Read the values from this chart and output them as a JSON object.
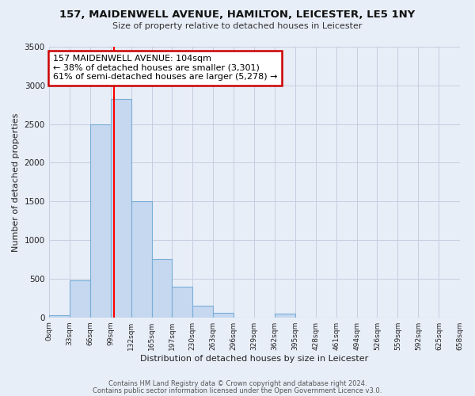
{
  "title": "157, MAIDENWELL AVENUE, HAMILTON, LEICESTER, LE5 1NY",
  "subtitle": "Size of property relative to detached houses in Leicester",
  "xlabel": "Distribution of detached houses by size in Leicester",
  "ylabel": "Number of detached properties",
  "bin_edges": [
    0,
    33,
    66,
    99,
    132,
    165,
    197,
    230,
    263,
    296,
    329,
    362,
    395,
    428,
    461,
    494,
    526,
    559,
    592,
    625,
    658
  ],
  "bin_labels": [
    "0sqm",
    "33sqm",
    "66sqm",
    "99sqm",
    "132sqm",
    "165sqm",
    "197sqm",
    "230sqm",
    "263sqm",
    "296sqm",
    "329sqm",
    "362sqm",
    "395sqm",
    "428sqm",
    "461sqm",
    "494sqm",
    "526sqm",
    "559sqm",
    "592sqm",
    "625sqm",
    "658sqm"
  ],
  "bar_heights": [
    30,
    480,
    2500,
    2820,
    1500,
    750,
    400,
    150,
    60,
    0,
    0,
    50,
    0,
    0,
    0,
    0,
    0,
    0,
    0,
    0
  ],
  "bar_color": "#c5d8f0",
  "bar_edge_color": "#7aaed6",
  "property_line_x": 104,
  "property_line_color": "red",
  "ylim": [
    0,
    3500
  ],
  "yticks": [
    0,
    500,
    1000,
    1500,
    2000,
    2500,
    3000,
    3500
  ],
  "annotation_text": "157 MAIDENWELL AVENUE: 104sqm\n← 38% of detached houses are smaller (3,301)\n61% of semi-detached houses are larger (5,278) →",
  "annotation_box_color": "white",
  "annotation_box_edge_color": "#cc0000",
  "footer_line1": "Contains HM Land Registry data © Crown copyright and database right 2024.",
  "footer_line2": "Contains public sector information licensed under the Open Government Licence v3.0.",
  "background_color": "#e8eef8",
  "grid_color": "#c5cfe0"
}
